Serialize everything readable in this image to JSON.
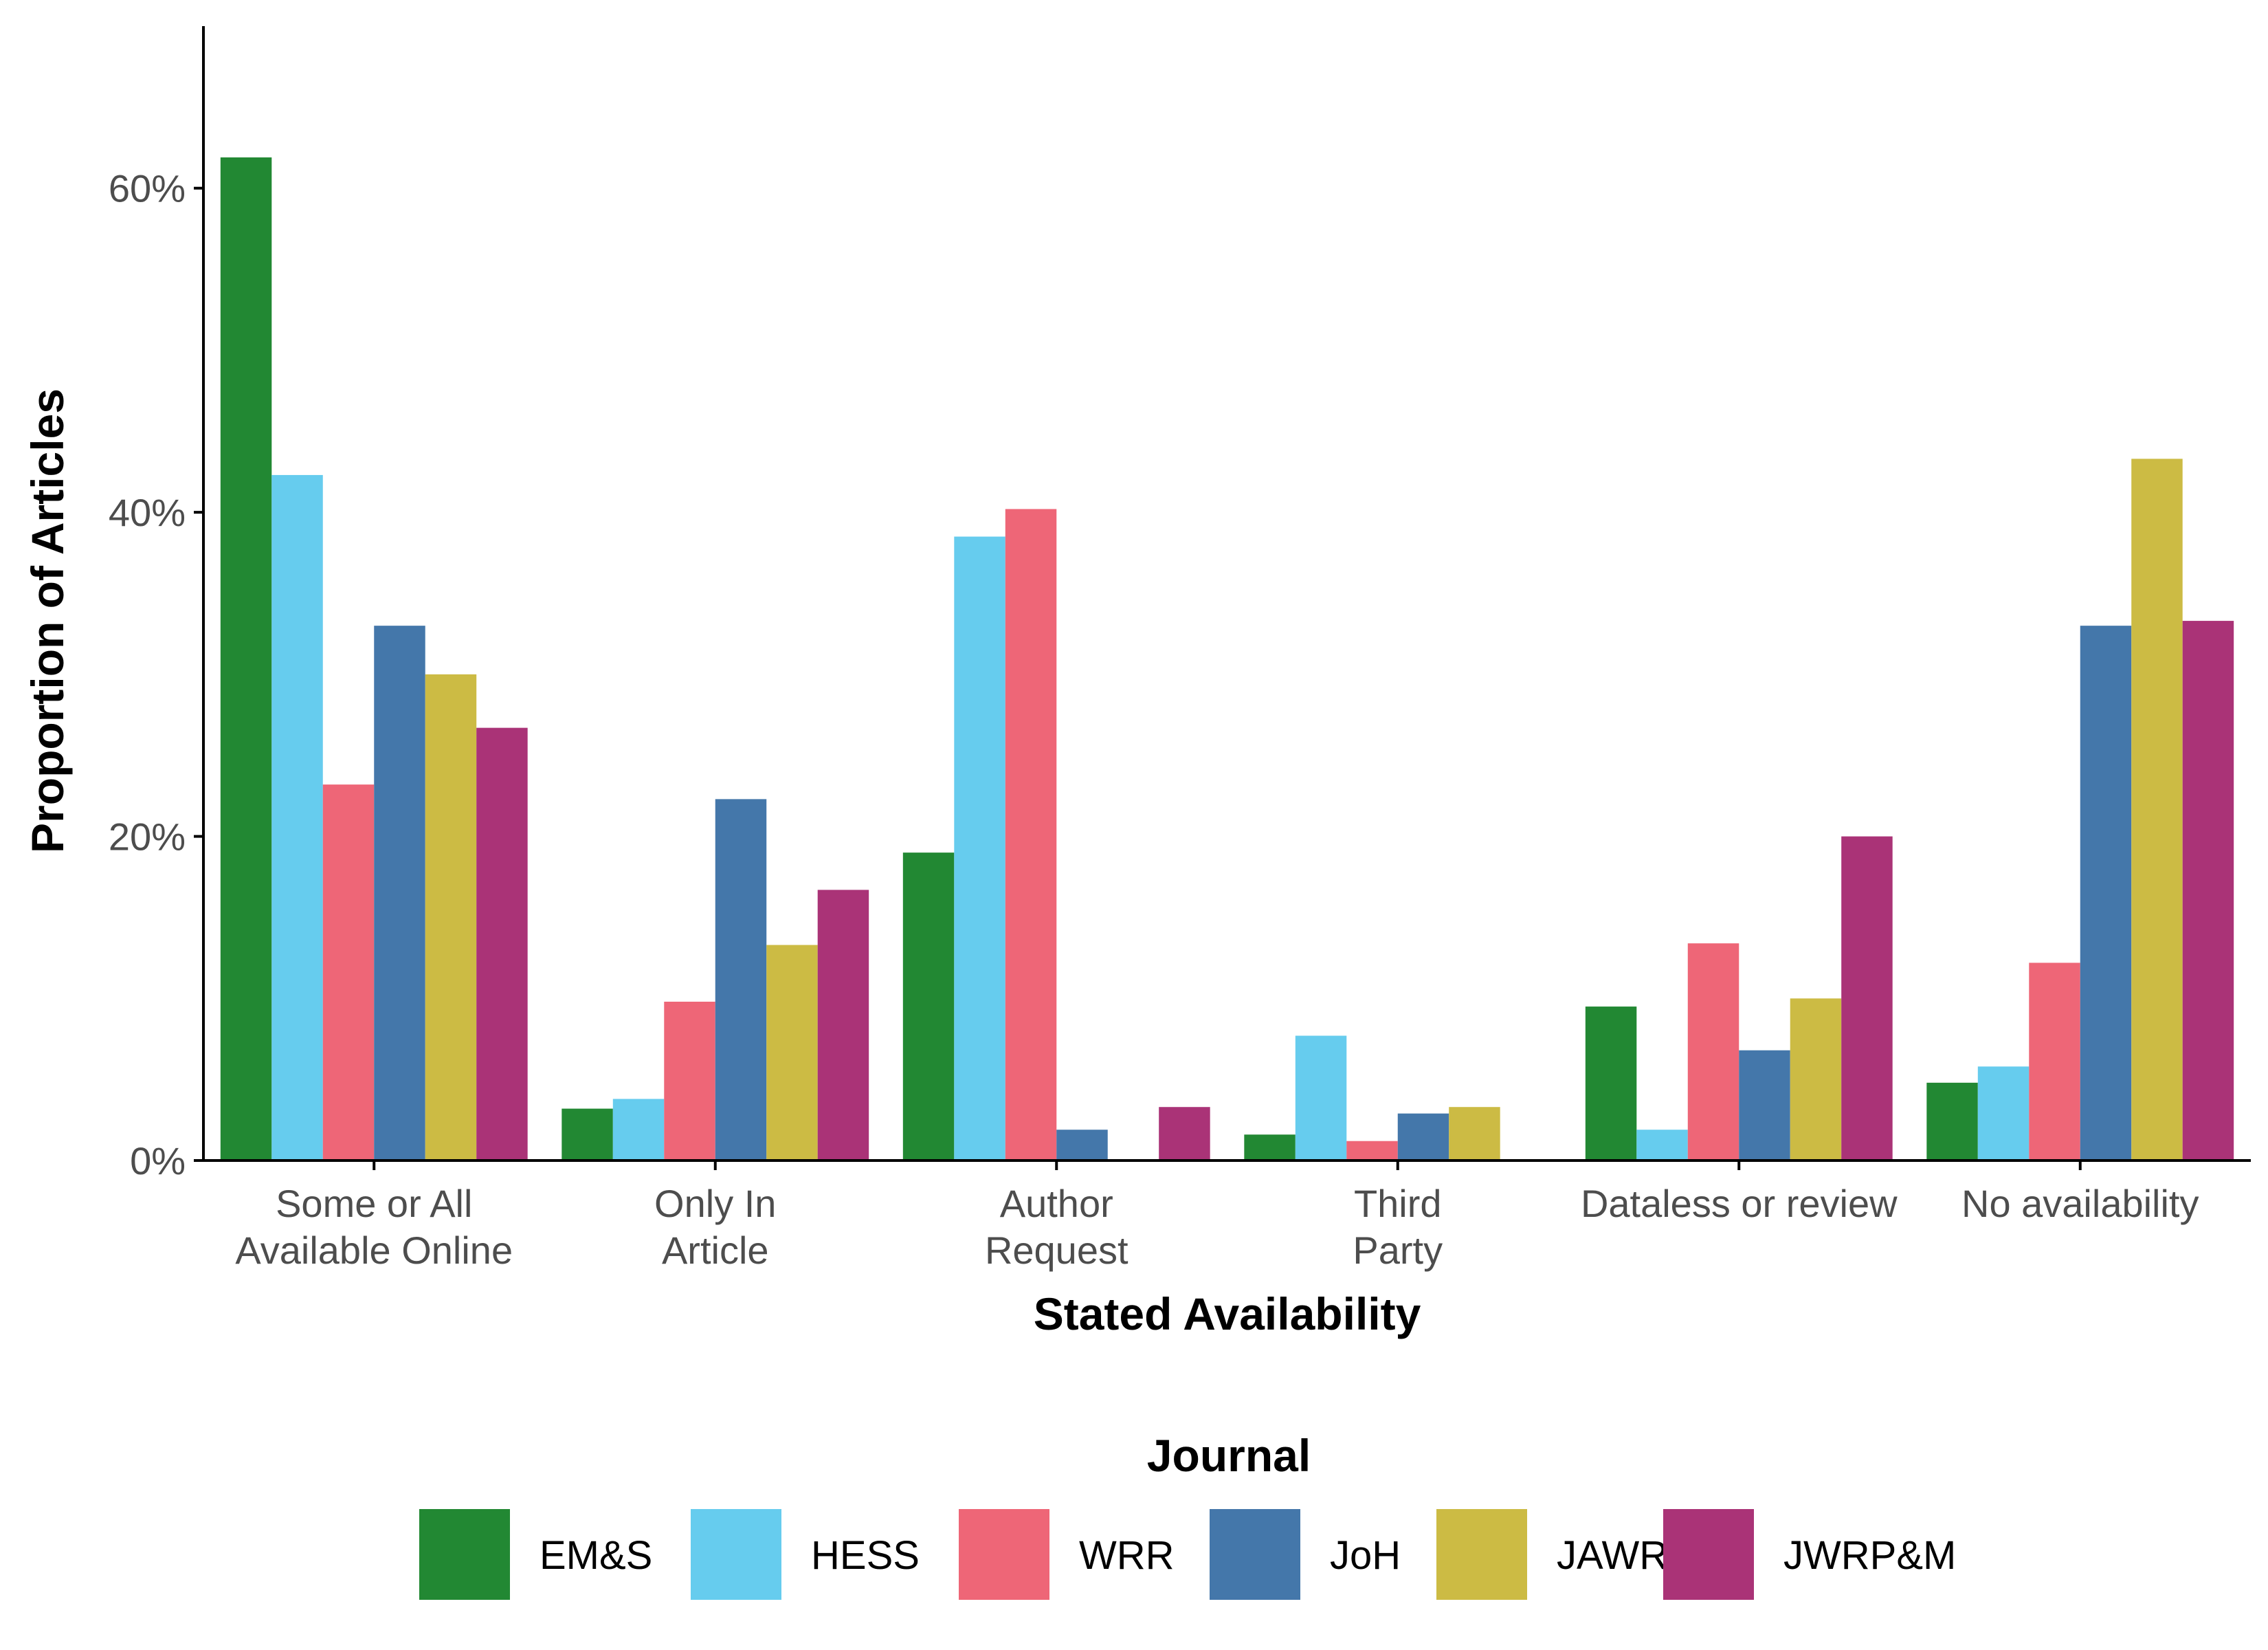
{
  "chart_data": {
    "type": "bar",
    "title": "",
    "xlabel": "Stated Availability",
    "ylabel": "Proportion of Articles",
    "ylim": [
      0,
      70
    ],
    "yticks": [
      0,
      20,
      40,
      60
    ],
    "ytick_labels": [
      "0%",
      "20%",
      "40%",
      "60%"
    ],
    "grid": false,
    "legend_position": "bottom",
    "legend_title": "Journal",
    "categories": [
      [
        "Some or All",
        "Available Online"
      ],
      [
        "Only In",
        "Article"
      ],
      [
        "Author",
        "Request"
      ],
      [
        "Third",
        "Party"
      ],
      [
        "Dataless or review"
      ],
      [
        "No availability"
      ]
    ],
    "series": [
      {
        "name": "EM&S",
        "color": "#228833",
        "values": [
          61.9,
          3.2,
          19.0,
          1.6,
          9.5,
          4.8
        ]
      },
      {
        "name": "HESS",
        "color": "#66CCEE",
        "values": [
          42.3,
          3.8,
          38.5,
          7.7,
          1.9,
          5.8
        ]
      },
      {
        "name": "WRR",
        "color": "#EE6677",
        "values": [
          23.2,
          9.8,
          40.2,
          1.2,
          13.4,
          12.2
        ]
      },
      {
        "name": "JoH",
        "color": "#4477AA",
        "values": [
          33.0,
          22.3,
          1.9,
          2.9,
          6.8,
          33.0
        ]
      },
      {
        "name": "JAWRA",
        "color": "#CCBB44",
        "values": [
          30.0,
          13.3,
          0.0,
          3.3,
          10.0,
          43.3
        ]
      },
      {
        "name": "JWRP&M",
        "color": "#AA3377",
        "values": [
          26.7,
          16.7,
          3.3,
          0.0,
          20.0,
          33.3
        ]
      }
    ]
  }
}
